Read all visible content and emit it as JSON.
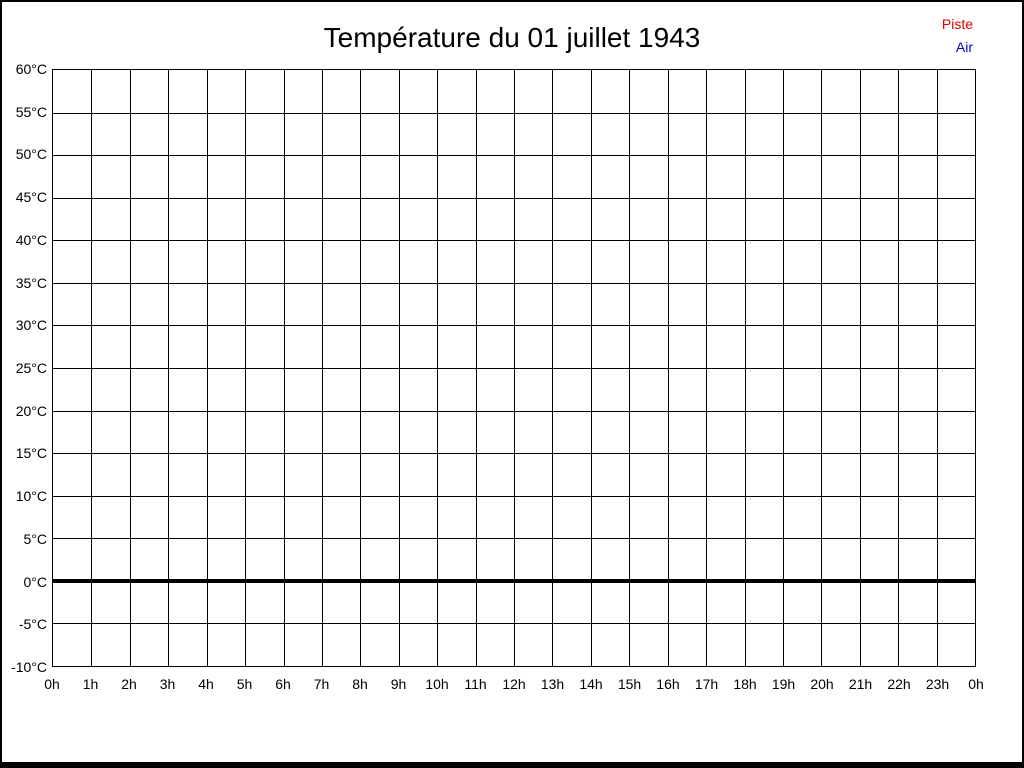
{
  "window": {
    "background": "#ffffff",
    "border_color": "#000000"
  },
  "chart_data": {
    "type": "line",
    "title": "Température du 01 juillet 1943",
    "xlabel": "",
    "ylabel": "",
    "x_ticks": [
      "0h",
      "1h",
      "2h",
      "3h",
      "4h",
      "5h",
      "6h",
      "7h",
      "8h",
      "9h",
      "10h",
      "11h",
      "12h",
      "13h",
      "14h",
      "15h",
      "16h",
      "17h",
      "18h",
      "19h",
      "20h",
      "21h",
      "22h",
      "23h",
      "0h"
    ],
    "y_ticks": [
      "60°C",
      "55°C",
      "50°C",
      "45°C",
      "40°C",
      "35°C",
      "30°C",
      "25°C",
      "20°C",
      "15°C",
      "10°C",
      "5°C",
      "0°C",
      "-5°C",
      "-10°C"
    ],
    "y_values": [
      60,
      55,
      50,
      45,
      40,
      35,
      30,
      25,
      20,
      15,
      10,
      5,
      0,
      -5,
      -10
    ],
    "ylim": [
      -10,
      60
    ],
    "xlim_hours": [
      0,
      24
    ],
    "grid": true,
    "grid_color": "#000000",
    "legend_position": "top-right",
    "series": [
      {
        "name": "Piste",
        "color": "#dd0000",
        "values": []
      },
      {
        "name": "Air",
        "color": "#0000cd",
        "values": []
      }
    ],
    "zero_line": {
      "value": 0,
      "emphasized": true,
      "color": "#000000"
    }
  }
}
